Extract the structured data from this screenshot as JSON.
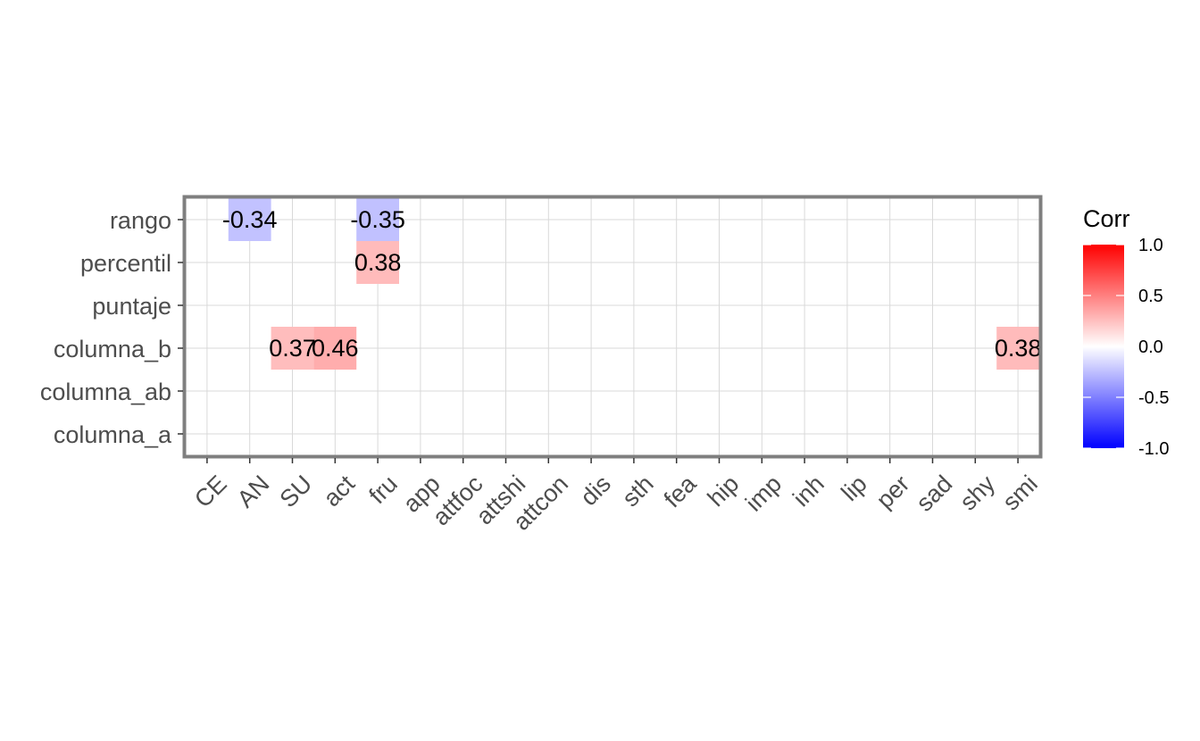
{
  "chart_data": {
    "type": "heatmap",
    "title": "",
    "xlabel": "",
    "ylabel": "",
    "x_categories": [
      "CE",
      "AN",
      "SU",
      "act",
      "fru",
      "app",
      "attfoc",
      "attshi",
      "attcon",
      "dis",
      "sth",
      "fea",
      "hip",
      "imp",
      "inh",
      "lip",
      "per",
      "sad",
      "shy",
      "smi"
    ],
    "y_categories": [
      "rango",
      "percentil",
      "puntaje",
      "columna_b",
      "columna_ab",
      "columna_a"
    ],
    "cells": [
      {
        "row": "rango",
        "col": "AN",
        "value": -0.34,
        "label": "-0.34"
      },
      {
        "row": "rango",
        "col": "fru",
        "value": -0.35,
        "label": "-0.35"
      },
      {
        "row": "percentil",
        "col": "fru",
        "value": 0.38,
        "label": "0.38"
      },
      {
        "row": "columna_b",
        "col": "SU",
        "value": 0.37,
        "label": "0.37"
      },
      {
        "row": "columna_b",
        "col": "act",
        "value": 0.46,
        "label": "0.46"
      },
      {
        "row": "columna_b",
        "col": "smi",
        "value": 0.38,
        "label": "0.38"
      }
    ],
    "legend": {
      "title": "Corr",
      "range": [
        -1.0,
        1.0
      ],
      "ticks": [
        {
          "value": 1.0,
          "label": "1.0"
        },
        {
          "value": 0.5,
          "label": "0.5"
        },
        {
          "value": 0.0,
          "label": "0.0"
        },
        {
          "value": -0.5,
          "label": "-0.5"
        },
        {
          "value": -1.0,
          "label": "-1.0"
        }
      ],
      "colors": {
        "low": "#0000FF",
        "mid": "#FFFFFF",
        "high": "#FF0000"
      }
    },
    "colors": {
      "grid": "#d9d9d9",
      "border": "#7f7f7f",
      "tick_text": "#4d4d4d"
    }
  }
}
